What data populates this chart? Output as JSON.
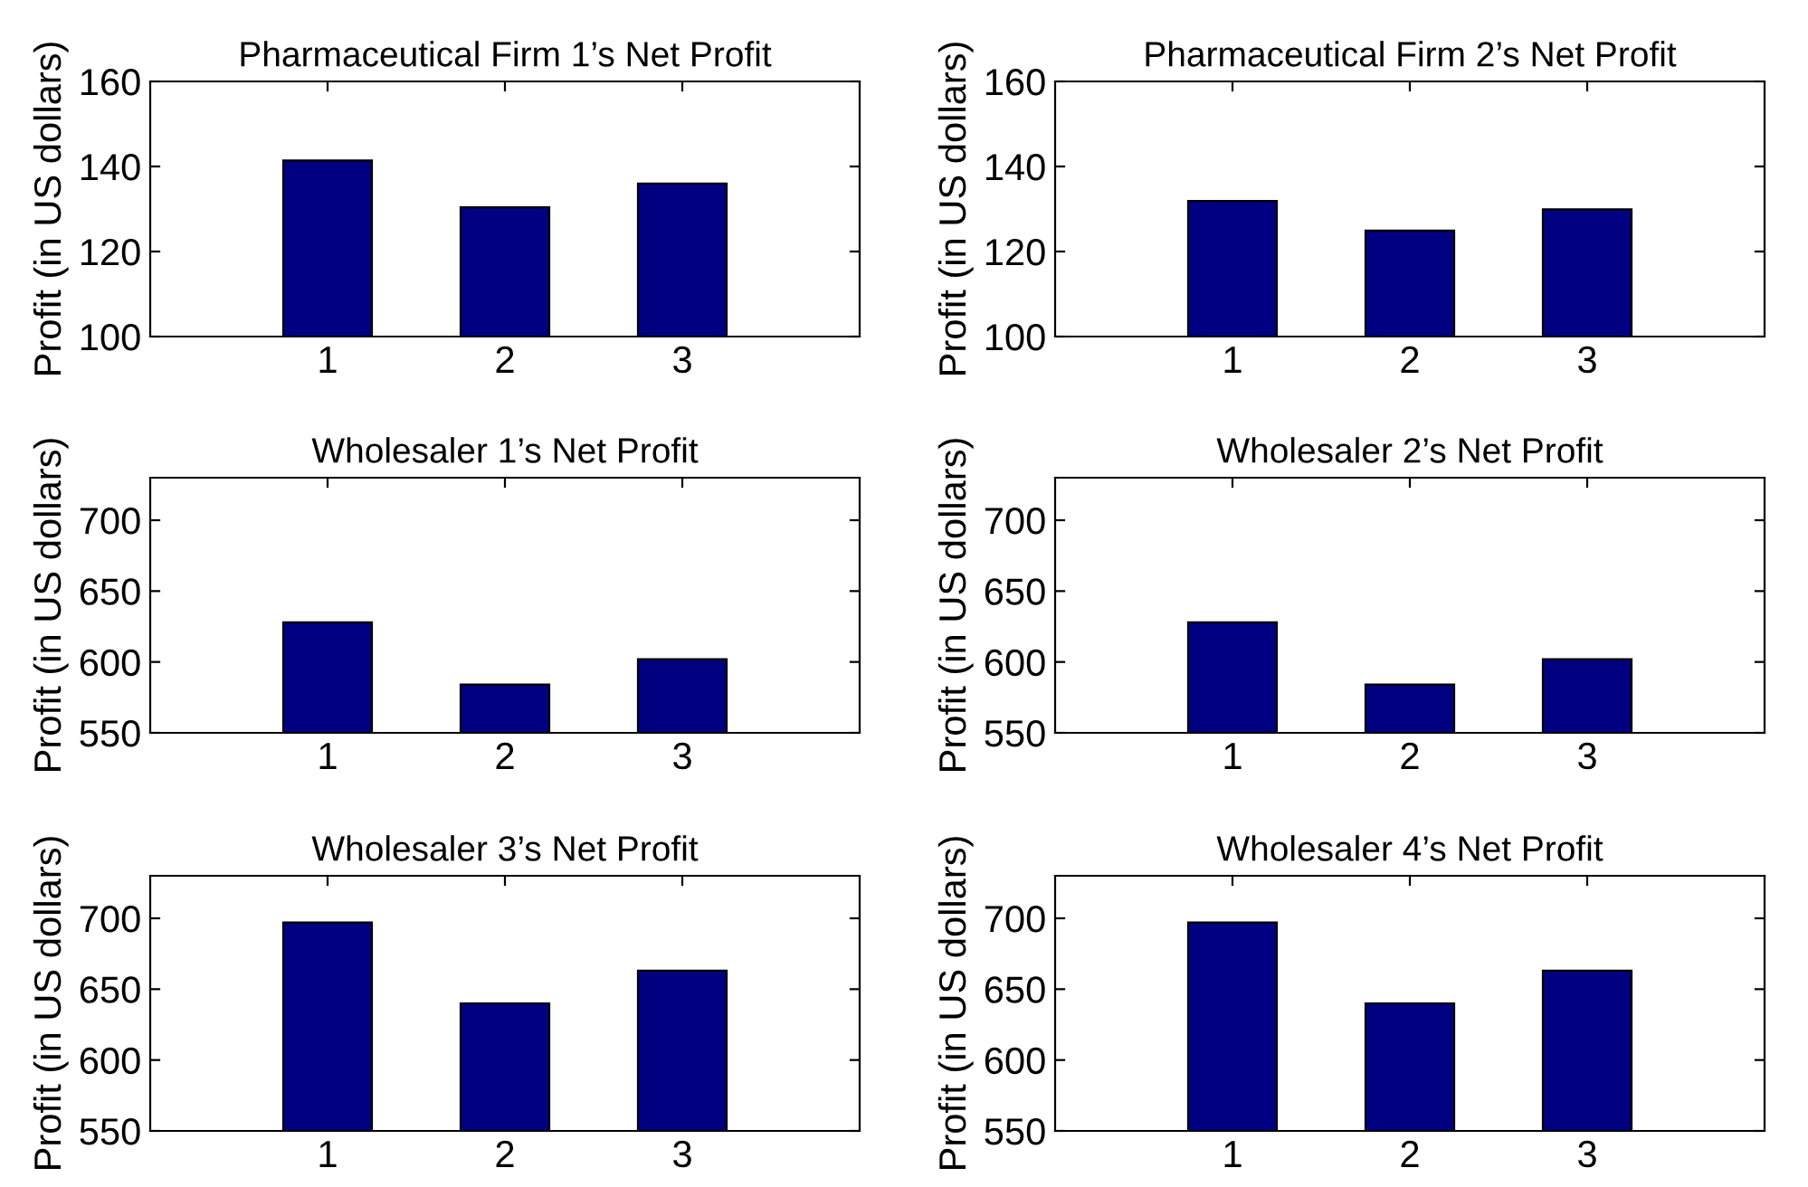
{
  "chart_data": [
    {
      "type": "bar",
      "title": "Pharmaceutical Firm 1’s Net Profit",
      "ylabel": "Profit (in US dollars)",
      "categories": [
        "1",
        "2",
        "3"
      ],
      "values": [
        141.4,
        130.4,
        136
      ],
      "color": "#000080",
      "ylim": [
        100,
        160
      ],
      "yticks": [
        100,
        120,
        140,
        160
      ],
      "grid": false,
      "legend": false
    },
    {
      "type": "bar",
      "title": "Pharmaceutical Firm 2’s Net Profit",
      "ylabel": "Profit (in US dollars)",
      "categories": [
        "1",
        "2",
        "3"
      ],
      "values": [
        131.9,
        124.9,
        129.9
      ],
      "color": "#000080",
      "ylim": [
        100,
        160
      ],
      "yticks": [
        100,
        120,
        140,
        160
      ],
      "grid": false,
      "legend": false
    },
    {
      "type": "bar",
      "title": "Wholesaler 1’s Net Profit",
      "ylabel": "Profit (in US dollars)",
      "categories": [
        "1",
        "2",
        "3"
      ],
      "values": [
        628,
        584,
        602
      ],
      "color": "#000080",
      "ylim": [
        550,
        730
      ],
      "yticks": [
        550,
        600,
        650,
        700
      ],
      "grid": false,
      "legend": false
    },
    {
      "type": "bar",
      "title": "Wholesaler 2’s Net Profit",
      "ylabel": "Profit (in US dollars)",
      "categories": [
        "1",
        "2",
        "3"
      ],
      "values": [
        628,
        584,
        602
      ],
      "color": "#000080",
      "ylim": [
        550,
        730
      ],
      "yticks": [
        550,
        600,
        650,
        700
      ],
      "grid": false,
      "legend": false
    },
    {
      "type": "bar",
      "title": "Wholesaler 3’s Net Profit",
      "ylabel": "Profit (in US dollars)",
      "categories": [
        "1",
        "2",
        "3"
      ],
      "values": [
        697,
        640,
        663
      ],
      "color": "#000080",
      "ylim": [
        550,
        730
      ],
      "yticks": [
        550,
        600,
        650,
        700
      ],
      "grid": false,
      "legend": false
    },
    {
      "type": "bar",
      "title": "Wholesaler 4’s Net Profit",
      "ylabel": "Profit (in US dollars)",
      "categories": [
        "1",
        "2",
        "3"
      ],
      "values": [
        697,
        640,
        663
      ],
      "color": "#000080",
      "ylim": [
        550,
        730
      ],
      "yticks": [
        550,
        600,
        650,
        700
      ],
      "grid": false,
      "legend": false
    }
  ]
}
